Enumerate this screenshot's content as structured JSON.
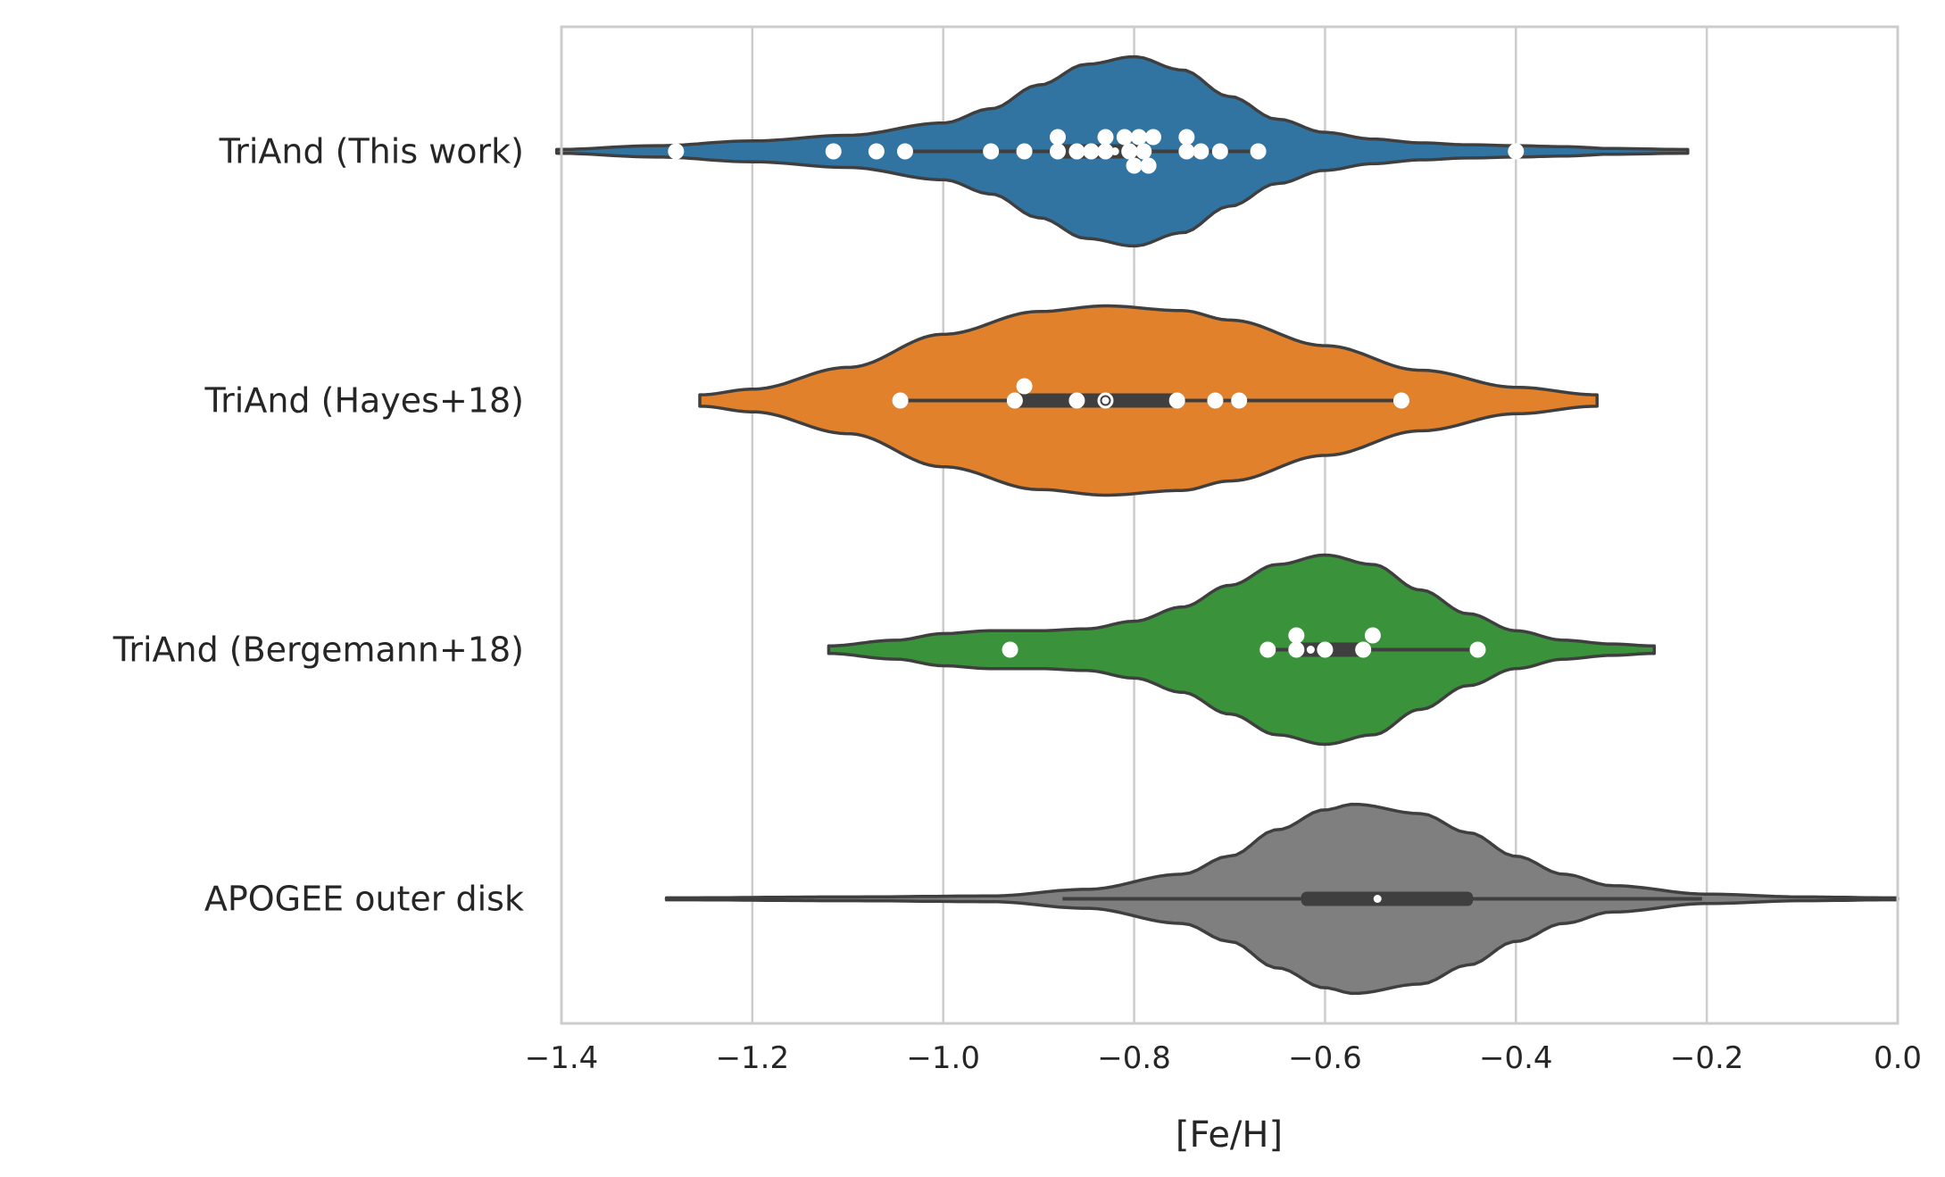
{
  "chart_data": {
    "type": "violin",
    "orientation": "horizontal",
    "xlabel": "[Fe/H]",
    "xlim": [
      -1.4,
      0.0
    ],
    "xticks": [
      -1.4,
      -1.2,
      -1.0,
      -0.8,
      -0.6,
      -0.4,
      -0.2,
      0.0
    ],
    "xtick_labels": [
      "−1.4",
      "−1.2",
      "−1.0",
      "−0.8",
      "−0.6",
      "−0.4",
      "−0.2",
      "0.0"
    ],
    "grid": "vertical",
    "series": [
      {
        "name": "TriAnd (This work)",
        "color": "#3274a1",
        "kde_range": [
          -1.405,
          -0.22
        ],
        "density_profile": [
          [
            -1.405,
            0.02
          ],
          [
            -1.3,
            0.06
          ],
          [
            -1.2,
            0.11
          ],
          [
            -1.1,
            0.17
          ],
          [
            -1.0,
            0.3
          ],
          [
            -0.95,
            0.45
          ],
          [
            -0.9,
            0.7
          ],
          [
            -0.85,
            0.92
          ],
          [
            -0.8,
            1.0
          ],
          [
            -0.75,
            0.86
          ],
          [
            -0.7,
            0.58
          ],
          [
            -0.65,
            0.34
          ],
          [
            -0.6,
            0.2
          ],
          [
            -0.55,
            0.13
          ],
          [
            -0.5,
            0.09
          ],
          [
            -0.45,
            0.07
          ],
          [
            -0.4,
            0.06
          ],
          [
            -0.35,
            0.05
          ],
          [
            -0.3,
            0.03
          ],
          [
            -0.22,
            0.02
          ]
        ],
        "box": {
          "q1": -0.88,
          "median": -0.82,
          "q3": -0.79,
          "whisker_low": -1.04,
          "whisker_high": -0.67
        },
        "points": [
          {
            "x": -1.28,
            "lane": 0
          },
          {
            "x": -1.115,
            "lane": 0
          },
          {
            "x": -1.07,
            "lane": 0
          },
          {
            "x": -1.04,
            "lane": 0
          },
          {
            "x": -0.95,
            "lane": 0
          },
          {
            "x": -0.915,
            "lane": 0
          },
          {
            "x": -0.88,
            "lane": -1
          },
          {
            "x": -0.88,
            "lane": 0
          },
          {
            "x": -0.86,
            "lane": 0
          },
          {
            "x": -0.845,
            "lane": 0
          },
          {
            "x": -0.83,
            "lane": -1
          },
          {
            "x": -0.83,
            "lane": 0
          },
          {
            "x": -0.81,
            "lane": -1
          },
          {
            "x": -0.805,
            "lane": 0
          },
          {
            "x": -0.8,
            "lane": 1
          },
          {
            "x": -0.795,
            "lane": -1
          },
          {
            "x": -0.79,
            "lane": 0
          },
          {
            "x": -0.785,
            "lane": 1
          },
          {
            "x": -0.78,
            "lane": -1
          },
          {
            "x": -0.745,
            "lane": -1
          },
          {
            "x": -0.745,
            "lane": 0
          },
          {
            "x": -0.73,
            "lane": 0
          },
          {
            "x": -0.71,
            "lane": 0
          },
          {
            "x": -0.67,
            "lane": 0
          },
          {
            "x": -0.4,
            "lane": 0
          }
        ]
      },
      {
        "name": "TriAnd (Hayes+18)",
        "color": "#e1812c",
        "kde_range": [
          -1.255,
          -0.315
        ],
        "density_profile": [
          [
            -1.255,
            0.06
          ],
          [
            -1.2,
            0.12
          ],
          [
            -1.1,
            0.35
          ],
          [
            -1.0,
            0.7
          ],
          [
            -0.9,
            0.94
          ],
          [
            -0.83,
            1.0
          ],
          [
            -0.75,
            0.95
          ],
          [
            -0.7,
            0.85
          ],
          [
            -0.6,
            0.58
          ],
          [
            -0.5,
            0.32
          ],
          [
            -0.4,
            0.14
          ],
          [
            -0.315,
            0.06
          ]
        ],
        "box": {
          "q1": -0.93,
          "median": -0.83,
          "q3": -0.75,
          "whisker_low": -1.045,
          "whisker_high": -0.52
        },
        "points": [
          {
            "x": -1.045,
            "lane": 0
          },
          {
            "x": -0.925,
            "lane": 0
          },
          {
            "x": -0.915,
            "lane": -1
          },
          {
            "x": -0.86,
            "lane": 0
          },
          {
            "x": -0.83,
            "lane": 0
          },
          {
            "x": -0.755,
            "lane": 0
          },
          {
            "x": -0.715,
            "lane": 0
          },
          {
            "x": -0.69,
            "lane": 0
          },
          {
            "x": -0.52,
            "lane": 0
          }
        ]
      },
      {
        "name": "TriAnd (Bergemann+18)",
        "color": "#3a923a",
        "kde_range": [
          -1.12,
          -0.255
        ],
        "density_profile": [
          [
            -1.12,
            0.04
          ],
          [
            -1.05,
            0.1
          ],
          [
            -1.0,
            0.17
          ],
          [
            -0.95,
            0.2
          ],
          [
            -0.9,
            0.2
          ],
          [
            -0.85,
            0.22
          ],
          [
            -0.8,
            0.3
          ],
          [
            -0.75,
            0.45
          ],
          [
            -0.7,
            0.68
          ],
          [
            -0.65,
            0.9
          ],
          [
            -0.6,
            1.0
          ],
          [
            -0.55,
            0.9
          ],
          [
            -0.5,
            0.63
          ],
          [
            -0.45,
            0.38
          ],
          [
            -0.4,
            0.2
          ],
          [
            -0.35,
            0.1
          ],
          [
            -0.3,
            0.06
          ],
          [
            -0.255,
            0.04
          ]
        ],
        "box": {
          "q1": -0.635,
          "median": -0.615,
          "q3": -0.555,
          "whisker_low": -0.66,
          "whisker_high": -0.44
        },
        "points": [
          {
            "x": -0.93,
            "lane": 0
          },
          {
            "x": -0.66,
            "lane": 0
          },
          {
            "x": -0.63,
            "lane": -1
          },
          {
            "x": -0.63,
            "lane": 0
          },
          {
            "x": -0.6,
            "lane": 0
          },
          {
            "x": -0.56,
            "lane": 0
          },
          {
            "x": -0.55,
            "lane": -1
          },
          {
            "x": -0.44,
            "lane": 0
          }
        ]
      },
      {
        "name": "APOGEE outer disk",
        "color": "#7f7f7f",
        "kde_range": [
          -1.29,
          0.0
        ],
        "density_profile": [
          [
            -1.29,
            0.01
          ],
          [
            -1.1,
            0.02
          ],
          [
            -0.95,
            0.03
          ],
          [
            -0.85,
            0.1
          ],
          [
            -0.75,
            0.26
          ],
          [
            -0.7,
            0.45
          ],
          [
            -0.65,
            0.73
          ],
          [
            -0.6,
            0.94
          ],
          [
            -0.57,
            1.0
          ],
          [
            -0.5,
            0.9
          ],
          [
            -0.45,
            0.7
          ],
          [
            -0.4,
            0.45
          ],
          [
            -0.35,
            0.26
          ],
          [
            -0.3,
            0.14
          ],
          [
            -0.2,
            0.05
          ],
          [
            -0.1,
            0.02
          ],
          [
            0.0,
            0.01
          ]
        ],
        "box": {
          "q1": -0.625,
          "median": -0.545,
          "q3": -0.445,
          "whisker_low": -0.875,
          "whisker_high": -0.205
        },
        "points": []
      }
    ]
  }
}
